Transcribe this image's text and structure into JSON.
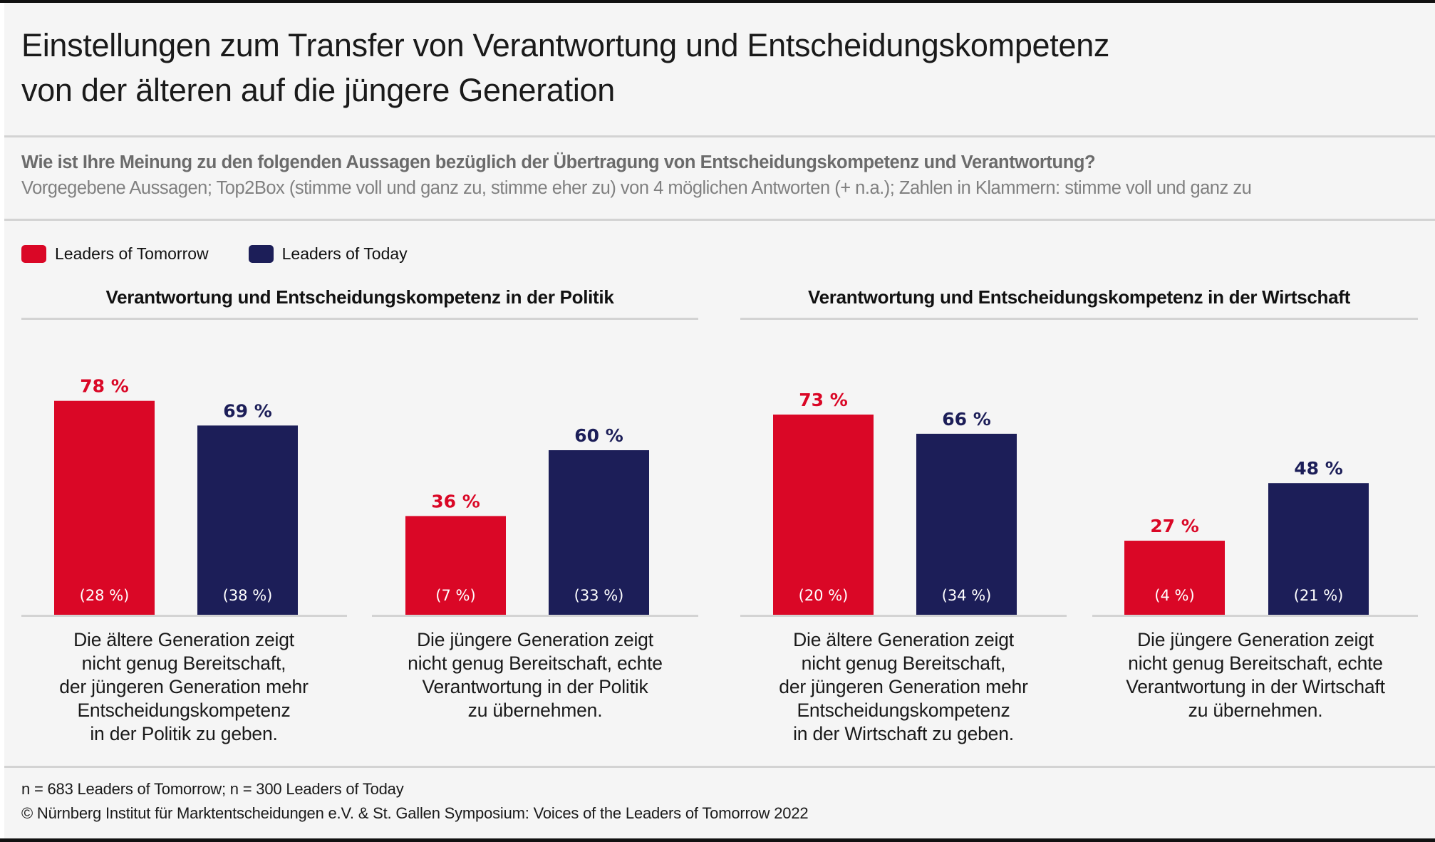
{
  "title": {
    "line1": "Einstellungen zum Transfer von Verantwortung und Entscheidungskompetenz",
    "line2": "von der älteren auf die jüngere Generation"
  },
  "question": "Wie ist Ihre Meinung zu den folgenden Aussagen bezüglich der Übertragung von Entscheidungskompetenz und Verantwortung?",
  "subtitle": "Vorgegebene Aussagen; Top2Box (stimme voll und ganz zu, stimme eher zu) von 4 möglichen Antworten (+ n.a.); Zahlen in Klammern: stimme voll und ganz zu",
  "legend": [
    {
      "label": "Leaders of Tomorrow",
      "color": "#da0726"
    },
    {
      "label": "Leaders of Today",
      "color": "#1c1e58"
    }
  ],
  "colors": {
    "tomorrow": "#da0726",
    "today": "#1c1e58",
    "inner_label": "#ffffff",
    "divider": "#d3d3d3"
  },
  "chart_data": {
    "type": "bar",
    "title": "Einstellungen zum Transfer von Verantwortung und Entscheidungskompetenz von der älteren auf die jüngere Generation",
    "unit": "%",
    "ylim": [
      0,
      100
    ],
    "grid": false,
    "legend_position": "top-left",
    "series_names": [
      "Leaders of Tomorrow",
      "Leaders of Today"
    ],
    "panels": [
      {
        "title": "Verantwortung und Entscheidungskompetenz in der Politik",
        "groups": [
          {
            "statement": [
              "Die ältere Generation zeigt",
              "nicht genug Bereitschaft,",
              "der jüngeren Generation mehr",
              "Entscheidungskompetenz",
              "in der Politik zu geben."
            ],
            "values": [
              78,
              69
            ],
            "top1": [
              28,
              38
            ],
            "value_labels": [
              "78 %",
              "69 %"
            ],
            "top1_labels": [
              "(28 %)",
              "(38 %)"
            ]
          },
          {
            "statement": [
              "Die jüngere Generation zeigt",
              "nicht genug Bereitschaft, echte",
              "Verantwortung in der Politik",
              "zu übernehmen."
            ],
            "values": [
              36,
              60
            ],
            "top1": [
              7,
              33
            ],
            "value_labels": [
              "36 %",
              "60 %"
            ],
            "top1_labels": [
              "(7 %)",
              "(33 %)"
            ]
          }
        ]
      },
      {
        "title": "Verantwortung und Entscheidungskompetenz in der Wirtschaft",
        "groups": [
          {
            "statement": [
              "Die ältere Generation zeigt",
              "nicht genug Bereitschaft,",
              "der jüngeren Generation mehr",
              "Entscheidungskompetenz",
              "in der Wirtschaft zu geben."
            ],
            "values": [
              73,
              66
            ],
            "top1": [
              20,
              34
            ],
            "value_labels": [
              "73 %",
              "66 %"
            ],
            "top1_labels": [
              "(20 %)",
              "(34 %)"
            ]
          },
          {
            "statement": [
              "Die jüngere Generation zeigt",
              "nicht genug Bereitschaft, echte",
              "Verantwortung in der Wirtschaft",
              "zu übernehmen."
            ],
            "values": [
              27,
              48
            ],
            "top1": [
              4,
              21
            ],
            "value_labels": [
              "27 %",
              "48 %"
            ],
            "top1_labels": [
              "(4 %)",
              "(21 %)"
            ]
          }
        ]
      }
    ]
  },
  "footer": {
    "sample": "n = 683 Leaders of Tomorrow; n = 300 Leaders of Today",
    "copyright": "© Nürnberg Institut für Marktentscheidungen e.V. & St. Gallen Symposium: Voices of the Leaders of Tomorrow 2022"
  }
}
